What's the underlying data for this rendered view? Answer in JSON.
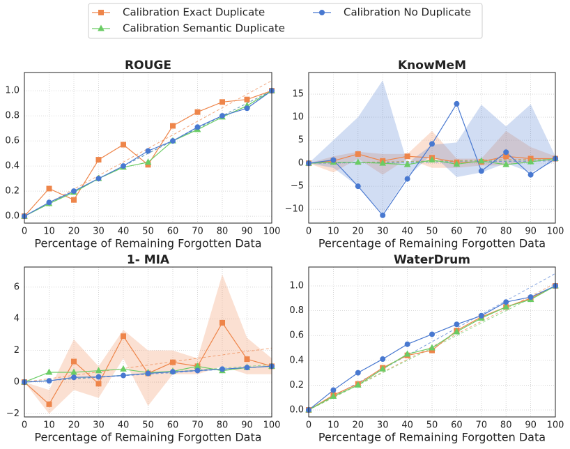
{
  "chart_data": [
    {
      "type": "line",
      "title": "ROUGE",
      "xlabel": "Percentage of Remaining Forgotten Data",
      "legend": "top",
      "x": [
        0,
        10,
        20,
        30,
        40,
        50,
        60,
        70,
        80,
        90,
        100
      ],
      "xlim": [
        0,
        100
      ],
      "xticks": [
        0,
        10,
        20,
        30,
        40,
        50,
        60,
        70,
        80,
        90,
        100
      ],
      "ylim": [
        -0.055,
        1.145
      ],
      "yticks": [
        {
          "value": 0,
          "label": "0.0"
        },
        {
          "value": 0.2,
          "label": "0.2"
        },
        {
          "value": 0.4,
          "label": "0.4"
        },
        {
          "value": 0.6,
          "label": "0.6"
        },
        {
          "value": 0.8,
          "label": "0.8"
        },
        {
          "value": 1,
          "label": "1.0"
        }
      ],
      "grid": true,
      "series": [
        {
          "name": "Calibration Exact Duplicate",
          "color": "#ee854a",
          "marker": "square",
          "values": [
            0,
            0.22,
            0.13,
            0.45,
            0.57,
            0.41,
            0.72,
            0.83,
            0.91,
            0.93,
            1.0
          ],
          "trend": [
            0,
            1.08
          ]
        },
        {
          "name": "Calibration Semantic Duplicate",
          "color": "#6acc64",
          "marker": "triangle",
          "values": [
            0,
            0.1,
            0.19,
            0.3,
            0.39,
            0.43,
            0.6,
            0.69,
            0.79,
            0.88,
            1.0
          ],
          "trend": [
            0,
            1.0
          ]
        },
        {
          "name": "Calibration No Duplicate",
          "color": "#4878d0",
          "marker": "circle",
          "values": [
            0,
            0.11,
            0.2,
            0.3,
            0.4,
            0.52,
            0.6,
            0.71,
            0.8,
            0.86,
            1.0
          ],
          "trend": [
            0,
            1.0
          ]
        }
      ]
    },
    {
      "type": "line",
      "title": "KnowMeM",
      "xlabel": "Percentage of Remaining Forgotten Data",
      "x": [
        0,
        10,
        20,
        30,
        40,
        50,
        60,
        70,
        80,
        90,
        100
      ],
      "xlim": [
        0,
        100
      ],
      "xticks": [
        0,
        10,
        20,
        30,
        40,
        50,
        60,
        70,
        80,
        90,
        100
      ],
      "ylim": [
        -13,
        19.7
      ],
      "yticks": [
        {
          "value": -10,
          "label": "−10"
        },
        {
          "value": -5,
          "label": "−5"
        },
        0,
        5,
        10,
        15
      ],
      "grid": true,
      "series": [
        {
          "name": "Calibration Exact Duplicate",
          "color": "#ee854a",
          "marker": "square",
          "values": [
            0,
            0.5,
            2,
            0.5,
            1.5,
            1.2,
            0.2,
            0.3,
            1.5,
            1,
            1
          ],
          "lower": [
            0,
            -2,
            1,
            -2.5,
            1,
            -1,
            -1,
            -0.5,
            -0.5,
            0.5,
            0.5
          ],
          "upper": [
            0,
            1.5,
            2.5,
            2,
            2,
            7,
            1,
            1,
            7,
            3.5,
            1.5
          ],
          "trend": [
            0,
            1
          ]
        },
        {
          "name": "Calibration Semantic Duplicate",
          "color": "#6acc64",
          "marker": "triangle",
          "values": [
            0,
            0.2,
            0.2,
            0,
            -0.3,
            0.7,
            -0.2,
            0.5,
            -0.3,
            0.3,
            1
          ],
          "trend": [
            0,
            0.8
          ]
        },
        {
          "name": "Calibration No Duplicate",
          "color": "#4878d0",
          "marker": "circle",
          "values": [
            0,
            0.7,
            -5,
            -11.3,
            -3.4,
            4.2,
            12.9,
            -1.7,
            2.4,
            -2.5,
            1
          ],
          "lower": [
            0,
            -1,
            -5,
            -11,
            -3,
            2,
            -3,
            -2,
            0,
            -2,
            0.5
          ],
          "upper": [
            0,
            5,
            10,
            18,
            0,
            4,
            4.5,
            12.7,
            8,
            12.8,
            1.5
          ],
          "trend": [
            0,
            0.5
          ]
        }
      ]
    },
    {
      "type": "line",
      "title": "1- MIA",
      "xlabel": "Percentage of Remaining Forgotten Data",
      "x": [
        0,
        10,
        20,
        30,
        40,
        50,
        60,
        70,
        80,
        90,
        100
      ],
      "xlim": [
        0,
        100
      ],
      "xticks": [
        0,
        10,
        20,
        30,
        40,
        50,
        60,
        70,
        80,
        90,
        100
      ],
      "ylim": [
        -2.2,
        7.27
      ],
      "yticks": [
        {
          "value": -2,
          "label": "−2"
        },
        0,
        2,
        4,
        6
      ],
      "grid": true,
      "series": [
        {
          "name": "Calibration Exact Duplicate",
          "color": "#ee854a",
          "marker": "square",
          "values": [
            0,
            -1.4,
            1.3,
            -0.1,
            2.9,
            0.55,
            1.25,
            1.0,
            3.75,
            1.45,
            1.0
          ],
          "lower": [
            0,
            -2,
            -0.5,
            -1,
            1.5,
            -1.5,
            0.5,
            0.5,
            1,
            0.5,
            0.5
          ],
          "upper": [
            0,
            -0.5,
            2.7,
            1,
            3.3,
            2,
            2,
            1.5,
            6.8,
            2.8,
            1.5
          ],
          "trend": [
            0,
            2.15
          ]
        },
        {
          "name": "Calibration Semantic Duplicate",
          "color": "#6acc64",
          "marker": "triangle",
          "values": [
            0,
            0.62,
            0.62,
            0.72,
            0.82,
            0.6,
            0.68,
            1.0,
            0.72,
            0.92,
            1.0
          ],
          "trend": [
            0,
            1.1
          ]
        },
        {
          "name": "Calibration No Duplicate",
          "color": "#4878d0",
          "marker": "circle",
          "values": [
            0,
            0.08,
            0.3,
            0.33,
            0.42,
            0.55,
            0.65,
            0.73,
            0.82,
            0.92,
            1.0
          ],
          "trend": [
            0,
            1.0
          ]
        }
      ]
    },
    {
      "type": "line",
      "title": "WaterDrum",
      "xlabel": "Percentage of Remaining Forgotten Data",
      "x": [
        0,
        10,
        20,
        30,
        40,
        50,
        60,
        70,
        80,
        90,
        100
      ],
      "xlim": [
        0,
        100
      ],
      "xticks": [
        0,
        10,
        20,
        30,
        40,
        50,
        60,
        70,
        80,
        90,
        100
      ],
      "ylim": [
        -0.056,
        1.152
      ],
      "yticks": [
        {
          "value": 0,
          "label": "0.0"
        },
        {
          "value": 0.2,
          "label": "0.2"
        },
        {
          "value": 0.4,
          "label": "0.4"
        },
        {
          "value": 0.6,
          "label": "0.6"
        },
        {
          "value": 0.8,
          "label": "0.8"
        },
        {
          "value": 1,
          "label": "1.0"
        }
      ],
      "grid": true,
      "series": [
        {
          "name": "Calibration Exact Duplicate",
          "color": "#ee854a",
          "marker": "square",
          "values": [
            0,
            0.12,
            0.21,
            0.34,
            0.44,
            0.48,
            0.64,
            0.75,
            0.83,
            0.9,
            1.0
          ],
          "trend": [
            0,
            1.02
          ]
        },
        {
          "name": "Calibration Semantic Duplicate",
          "color": "#6acc64",
          "marker": "triangle",
          "values": [
            0,
            0.11,
            0.2,
            0.33,
            0.45,
            0.5,
            0.63,
            0.74,
            0.83,
            0.89,
            1.0
          ],
          "trend": [
            0,
            1.0
          ]
        },
        {
          "name": "Calibration No Duplicate",
          "color": "#4878d0",
          "marker": "circle",
          "values": [
            0,
            0.16,
            0.3,
            0.41,
            0.53,
            0.61,
            0.69,
            0.76,
            0.87,
            0.91,
            1.0
          ],
          "trend": [
            0,
            1.1
          ]
        }
      ]
    }
  ]
}
